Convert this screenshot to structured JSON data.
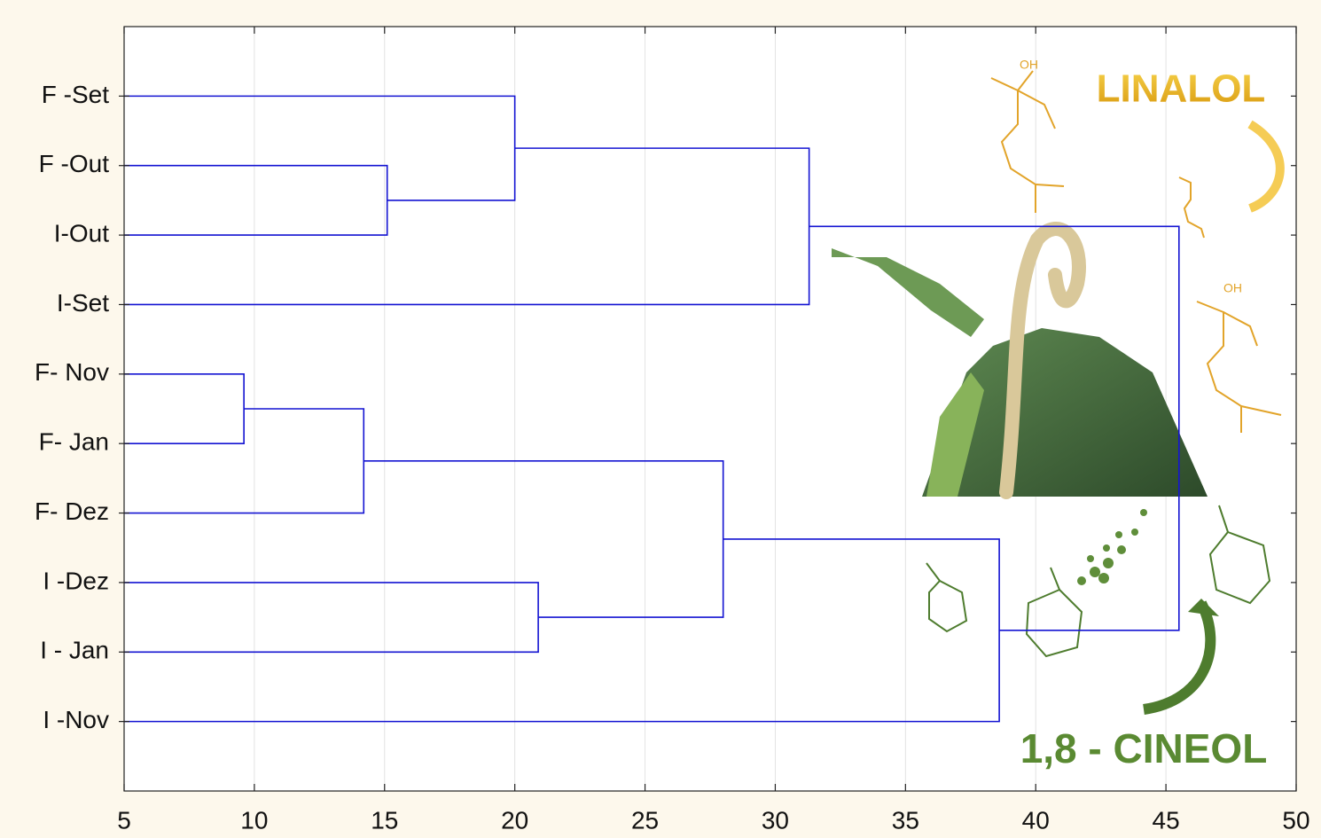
{
  "chart_data": {
    "type": "dendrogram",
    "orientation": "horizontal",
    "xlim": [
      5,
      50
    ],
    "xticks": [
      5,
      10,
      15,
      20,
      25,
      30,
      35,
      40,
      45,
      50
    ],
    "grid": true,
    "color": "#1414d2",
    "tree": {
      "height": 45.5,
      "children": [
        {
          "height": 31.3,
          "children": [
            {
              "height": 20.0,
              "children": [
                "F -Set",
                {
                  "height": 15.1,
                  "children": [
                    "F -Out",
                    "I-Out"
                  ]
                }
              ]
            },
            "I-Set"
          ]
        },
        {
          "height": 38.6,
          "children": [
            {
              "height": 28.0,
              "children": [
                {
                  "height": 14.2,
                  "children": [
                    {
                      "height": 9.6,
                      "children": [
                        "F- Nov",
                        "F- Jan"
                      ]
                    },
                    "F- Dez"
                  ]
                },
                {
                  "height": 20.9,
                  "children": [
                    "I -Dez",
                    "I - Jan"
                  ]
                }
              ]
            },
            "I -Nov"
          ]
        }
      ]
    },
    "annotations": [
      "LINALOL",
      "1,8 - CINEOL",
      "OH"
    ]
  }
}
